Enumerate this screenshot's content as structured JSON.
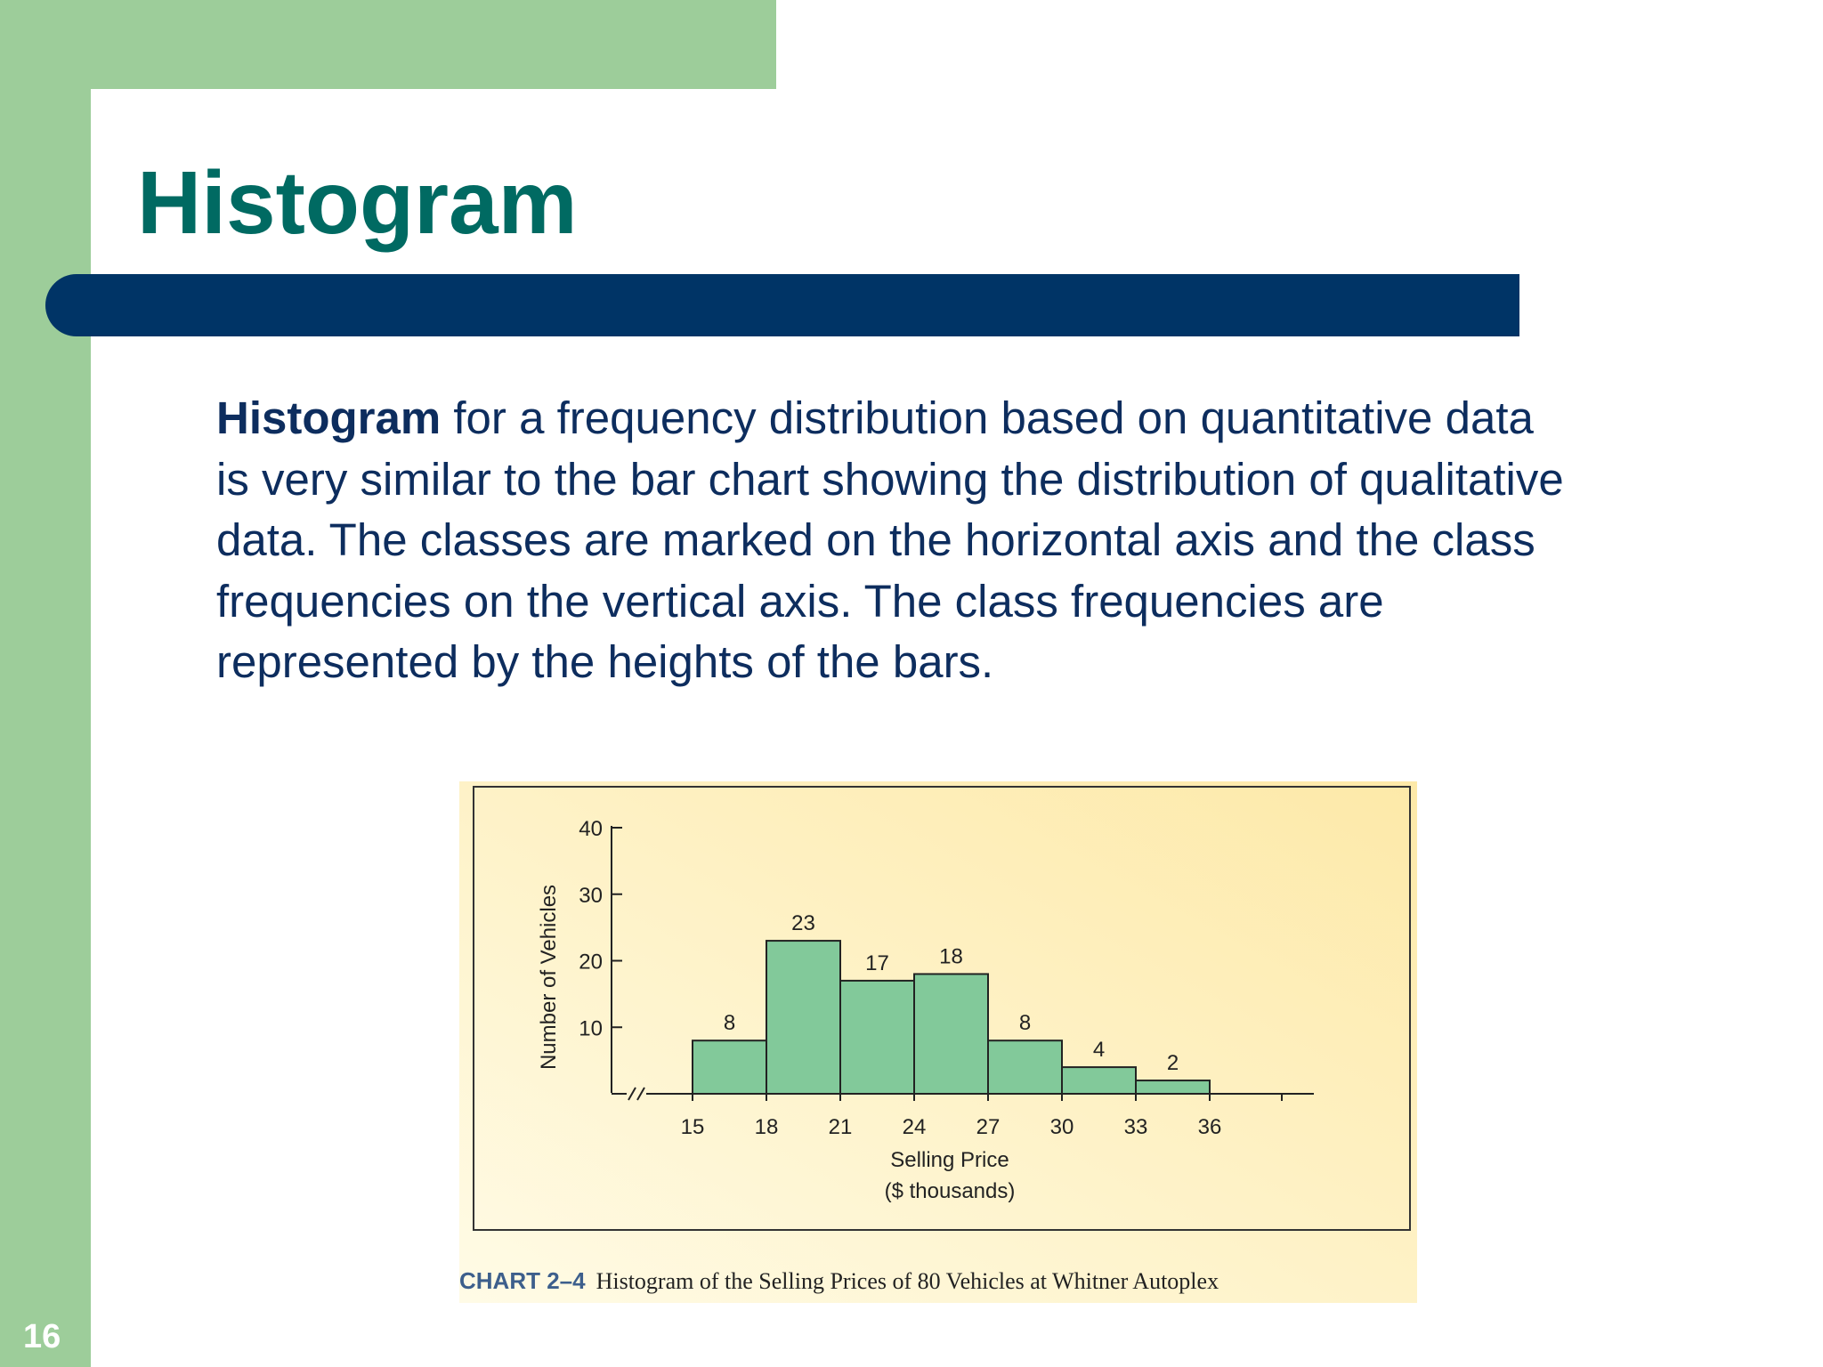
{
  "slide": {
    "title": "Histogram",
    "body_bold": "Histogram",
    "body_rest": " for a frequency distribution based on quantitative data is very similar to the bar chart showing the distribution of qualitative data. The classes are marked on the horizontal axis and the class frequencies on the vertical axis. The class frequencies are represented by the heights of the bars.",
    "slide_number": "16"
  },
  "caption": {
    "label": "CHART 2–4",
    "text": "Histogram of the Selling Prices of 80 Vehicles at Whitner Autoplex"
  },
  "colors": {
    "green_band": "#9dcd9a",
    "title_green": "#006a62",
    "title_bar_navy": "#003466",
    "body_text": "#0d2d5e",
    "bar_fill": "#82c99a",
    "figure_bg_light": "#fffbe6",
    "figure_bg_warm": "#fde9a8",
    "caption_label": "#3d5f8c"
  },
  "chart_data": {
    "type": "bar",
    "title": "",
    "xlabel": "Selling Price",
    "xlabel_sub": "($ thousands)",
    "ylabel": "Number of Vehicles",
    "bin_edges": [
      15,
      18,
      21,
      24,
      27,
      30,
      33,
      36
    ],
    "x_ticks": [
      "15",
      "18",
      "21",
      "24",
      "27",
      "30",
      "33",
      "36"
    ],
    "values": [
      8,
      23,
      17,
      18,
      8,
      4,
      2
    ],
    "data_labels": [
      "8",
      "23",
      "17",
      "18",
      "8",
      "4",
      "2"
    ],
    "y_ticks": [
      "10",
      "20",
      "30",
      "40"
    ],
    "ylim": [
      0,
      40
    ],
    "grid": false,
    "legend": "none"
  }
}
